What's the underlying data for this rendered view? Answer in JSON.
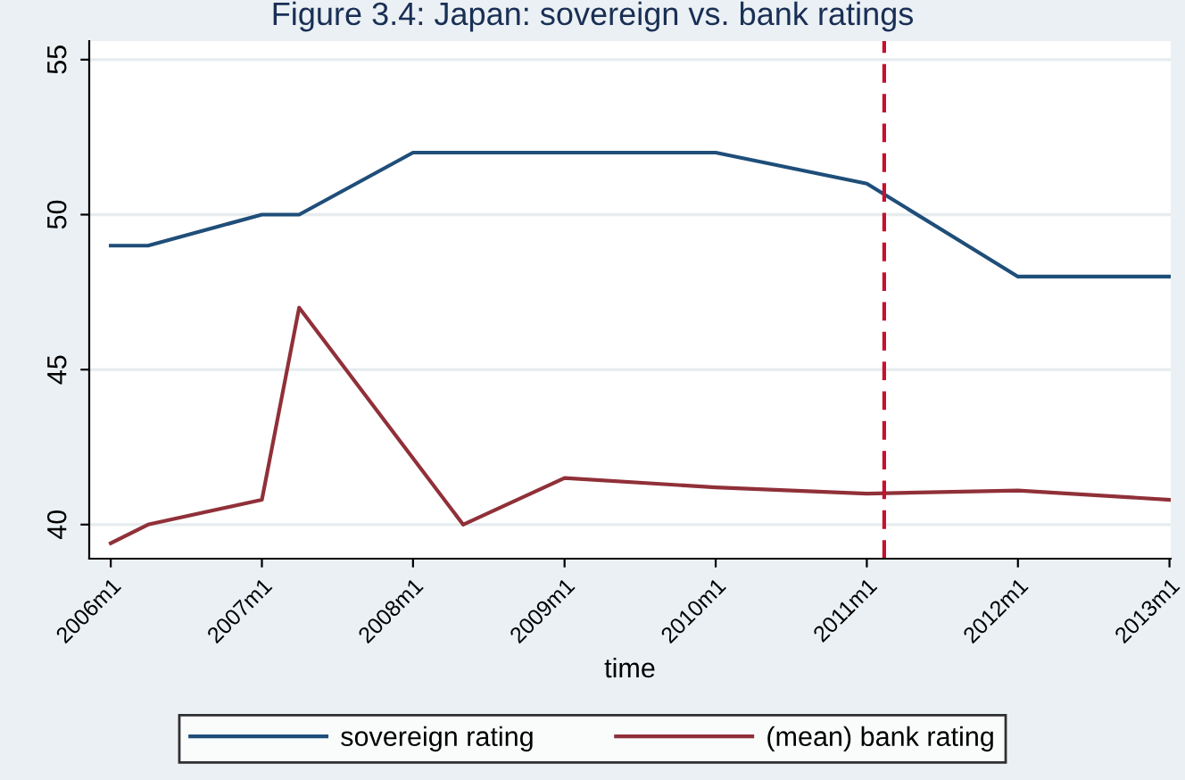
{
  "chart_data": {
    "type": "line",
    "title": "Figure 3.4: Japan: sovereign vs. bank ratings",
    "xlabel": "time",
    "xlim": [
      "2005-11-10",
      "2013-01-04"
    ],
    "xticks": [
      {
        "value": "2006-01",
        "label": "2006m1"
      },
      {
        "value": "2007-01",
        "label": "2007m1"
      },
      {
        "value": "2008-01",
        "label": "2008m1"
      },
      {
        "value": "2009-01",
        "label": "2009m1"
      },
      {
        "value": "2010-01",
        "label": "2010m1"
      },
      {
        "value": "2011-01",
        "label": "2011m1"
      },
      {
        "value": "2012-01",
        "label": "2012m1"
      },
      {
        "value": "2013-01",
        "label": "2013m1"
      }
    ],
    "ylim": [
      38.9,
      55.6
    ],
    "yticks": [
      40,
      45,
      50,
      55
    ],
    "grid": "y",
    "legend": "bottom",
    "line_style": "solid",
    "series": [
      {
        "name": "sovereign rating",
        "color": "#1f4e79",
        "x": [
          "2006-01",
          "2006-04",
          "2007-01",
          "2007-04",
          "2008-01",
          "2010-01",
          "2011-01",
          "2012-01",
          "2013-01"
        ],
        "values": [
          49,
          49,
          50,
          50,
          52,
          52,
          51,
          48,
          48
        ]
      },
      {
        "name": "(mean) bank rating",
        "color": "#903038",
        "x": [
          "2006-01",
          "2006-04",
          "2007-01",
          "2007-04",
          "2008-05",
          "2009-01",
          "2010-01",
          "2011-01",
          "2012-01",
          "2013-01"
        ],
        "values": [
          39.4,
          40,
          40.8,
          47,
          40,
          41.5,
          41.2,
          41.0,
          41.1,
          40.8
        ]
      }
    ],
    "ref_lines": [
      {
        "axis": "x",
        "value": "2011-02-12",
        "color": "#c8102e",
        "line_style": "dashed"
      }
    ]
  }
}
